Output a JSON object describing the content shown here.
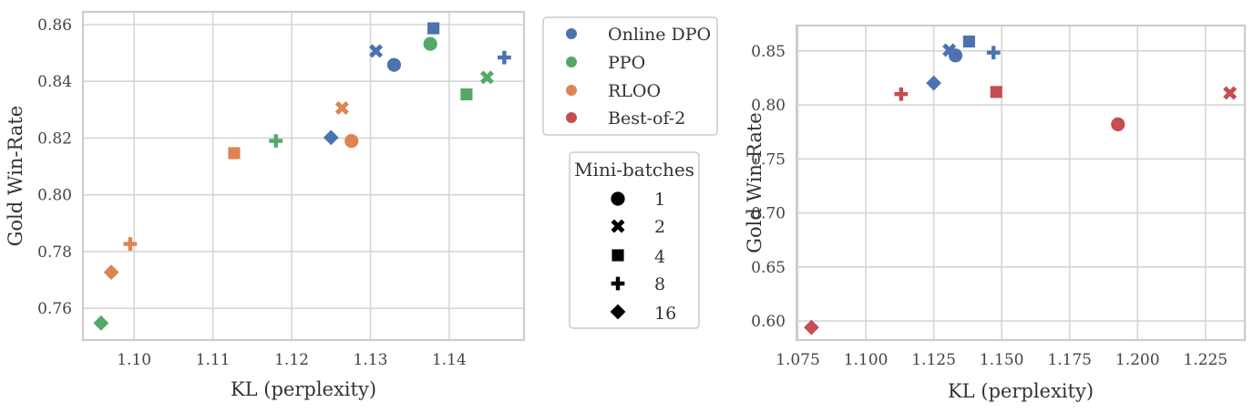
{
  "colors": {
    "Online DPO": "#4c72b0",
    "PPO": "#55a868",
    "RLOO": "#dd8452",
    "Best-of-2": "#c44e52",
    "grid": "#d6d6d6",
    "spine": "#cccccc",
    "marker_black": "#000000"
  },
  "marker_icons": {
    "1": "circle",
    "2": "x",
    "4": "square",
    "8": "plus",
    "16": "diamond"
  },
  "legend_methods": {
    "items": [
      {
        "label": "Online DPO",
        "color": "#4c72b0"
      },
      {
        "label": "PPO",
        "color": "#55a868"
      },
      {
        "label": "RLOO",
        "color": "#dd8452"
      },
      {
        "label": "Best-of-2",
        "color": "#c44e52"
      }
    ]
  },
  "legend_minibatches": {
    "title": "Mini-batches",
    "items": [
      "1",
      "2",
      "4",
      "8",
      "16"
    ]
  },
  "chart_data": [
    {
      "type": "scatter",
      "xlabel": "KL (perplexity)",
      "ylabel": "Gold Win-Rate",
      "xlim": [
        1.0935,
        1.1495
      ],
      "ylim": [
        0.7488,
        0.8645
      ],
      "xticks": [
        "1.10",
        "1.11",
        "1.12",
        "1.13",
        "1.14"
      ],
      "yticks": [
        "0.76",
        "0.78",
        "0.80",
        "0.82",
        "0.84",
        "0.86"
      ],
      "grid": true,
      "points": [
        {
          "method": "Online DPO",
          "minibatches": "1",
          "x": 1.133,
          "y": 0.8458
        },
        {
          "method": "Online DPO",
          "minibatches": "2",
          "x": 1.1307,
          "y": 0.8507
        },
        {
          "method": "Online DPO",
          "minibatches": "4",
          "x": 1.138,
          "y": 0.8587
        },
        {
          "method": "Online DPO",
          "minibatches": "8",
          "x": 1.147,
          "y": 0.8484
        },
        {
          "method": "Online DPO",
          "minibatches": "16",
          "x": 1.125,
          "y": 0.8202
        },
        {
          "method": "PPO",
          "minibatches": "1",
          "x": 1.1376,
          "y": 0.8532
        },
        {
          "method": "PPO",
          "minibatches": "2",
          "x": 1.1448,
          "y": 0.8414
        },
        {
          "method": "PPO",
          "minibatches": "4",
          "x": 1.1422,
          "y": 0.8354
        },
        {
          "method": "PPO",
          "minibatches": "8",
          "x": 1.118,
          "y": 0.819
        },
        {
          "method": "PPO",
          "minibatches": "16",
          "x": 1.0958,
          "y": 0.7548
        },
        {
          "method": "RLOO",
          "minibatches": "1",
          "x": 1.1276,
          "y": 0.819
        },
        {
          "method": "RLOO",
          "minibatches": "2",
          "x": 1.1264,
          "y": 0.8306
        },
        {
          "method": "RLOO",
          "minibatches": "4",
          "x": 1.1127,
          "y": 0.8147
        },
        {
          "method": "RLOO",
          "minibatches": "8",
          "x": 1.0995,
          "y": 0.7827
        },
        {
          "method": "RLOO",
          "minibatches": "16",
          "x": 1.0971,
          "y": 0.7727
        }
      ]
    },
    {
      "type": "scatter",
      "xlabel": "KL (perplexity)",
      "ylabel": "Gold Win-Rate",
      "xlim": [
        1.0745,
        1.2395
      ],
      "ylim": [
        0.5823,
        0.8735
      ],
      "xticks": [
        "1.075",
        "1.100",
        "1.125",
        "1.150",
        "1.175",
        "1.200",
        "1.225"
      ],
      "yticks": [
        "0.60",
        "0.65",
        "0.70",
        "0.75",
        "0.80",
        "0.85"
      ],
      "grid": true,
      "points": [
        {
          "method": "Online DPO",
          "minibatches": "1",
          "x": 1.133,
          "y": 0.8458
        },
        {
          "method": "Online DPO",
          "minibatches": "2",
          "x": 1.1307,
          "y": 0.8507
        },
        {
          "method": "Online DPO",
          "minibatches": "4",
          "x": 1.138,
          "y": 0.8587
        },
        {
          "method": "Online DPO",
          "minibatches": "8",
          "x": 1.147,
          "y": 0.8484
        },
        {
          "method": "Online DPO",
          "minibatches": "16",
          "x": 1.125,
          "y": 0.8202
        },
        {
          "method": "Best-of-2",
          "minibatches": "1",
          "x": 1.1928,
          "y": 0.782
        },
        {
          "method": "Best-of-2",
          "minibatches": "2",
          "x": 1.234,
          "y": 0.811
        },
        {
          "method": "Best-of-2",
          "minibatches": "4",
          "x": 1.148,
          "y": 0.812
        },
        {
          "method": "Best-of-2",
          "minibatches": "8",
          "x": 1.113,
          "y": 0.81
        },
        {
          "method": "Best-of-2",
          "minibatches": "16",
          "x": 1.08,
          "y": 0.594
        }
      ]
    }
  ]
}
